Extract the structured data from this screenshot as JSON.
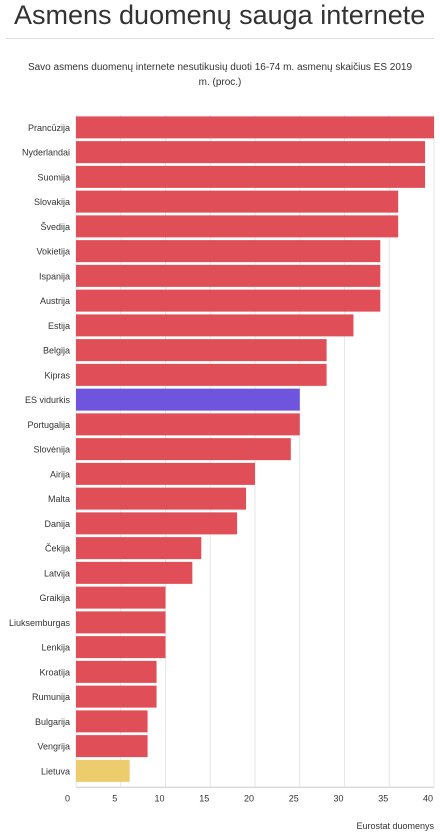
{
  "header": {
    "title": "Asmens duomenų sauga internete",
    "subtitle_line1": "Savo asmens duomenų internete nesutikusių duoti 16-74 m. asmenų skaičius ES  2019",
    "subtitle_line2": "m. (proc.)"
  },
  "source": "Eurostat duomenys",
  "colors": {
    "default": "#e04f58",
    "eu_average": "#6f55dd",
    "lithuania": "#edcc6e",
    "grid": "#e6e6e6"
  },
  "chart_data": {
    "type": "bar",
    "orientation": "horizontal",
    "title": "Savo asmens duomenų internete nesutikusių duoti 16-74 m. asmenų skaičius ES  2019 m. (proc.)",
    "xlabel": "",
    "ylabel": "",
    "xlim": [
      0,
      40
    ],
    "xticks": [
      0,
      5,
      10,
      15,
      20,
      25,
      30,
      35,
      40
    ],
    "grid": true,
    "categories": [
      "Prancūzija",
      "Nyderlandai",
      "Suomija",
      "Slovakija",
      "Švedija",
      "Vokietija",
      "Ispanija",
      "Austrija",
      "Estija",
      "Belgija",
      "Kipras",
      "ES vidurkis",
      "Portugalija",
      "Slovėnija",
      "Airija",
      "Malta",
      "Danija",
      "Čekija",
      "Latvija",
      "Graikija",
      "Liuksemburgas",
      "Lenkija",
      "Kroatija",
      "Rumunija",
      "Bulgarija",
      "Vengrija",
      "Lietuva"
    ],
    "values": [
      40,
      39,
      39,
      36,
      36,
      34,
      34,
      34,
      31,
      28,
      28,
      25,
      25,
      24,
      20,
      19,
      18,
      14,
      13,
      10,
      10,
      10,
      9,
      9,
      8,
      8,
      6
    ],
    "highlight": {
      "ES vidurkis": "#6f55dd",
      "Lietuva": "#edcc6e"
    }
  }
}
